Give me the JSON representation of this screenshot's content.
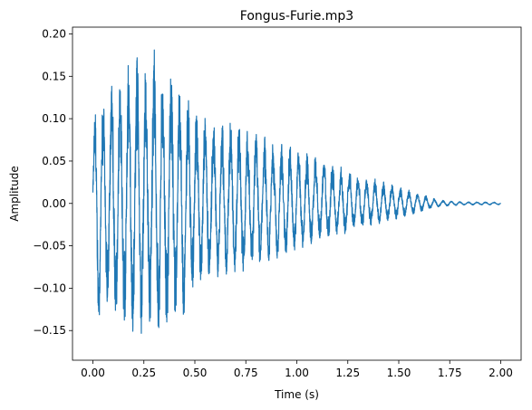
{
  "chart_data": {
    "type": "line",
    "title": "Fongus-Furie.mp3",
    "xlabel": "Time (s)",
    "ylabel": "Amplitude",
    "xlim": [
      -0.1,
      2.1
    ],
    "ylim": [
      -0.185,
      0.208
    ],
    "xticks": [
      0.0,
      0.25,
      0.5,
      0.75,
      1.0,
      1.25,
      1.5,
      1.75,
      2.0
    ],
    "xtick_labels": [
      "0.00",
      "0.25",
      "0.50",
      "0.75",
      "1.00",
      "1.25",
      "1.50",
      "1.75",
      "2.00"
    ],
    "yticks": [
      -0.15,
      -0.1,
      -0.05,
      0.0,
      0.05,
      0.1,
      0.15,
      0.2
    ],
    "ytick_labels": [
      "−0.15",
      "−0.10",
      "−0.05",
      "0.00",
      "0.05",
      "0.10",
      "0.15",
      "0.20"
    ],
    "grid": false,
    "legend": false,
    "series": [
      {
        "color": "#1f77b4",
        "x_start": 0.0,
        "x_end": 2.0,
        "envelope": {
          "x": [
            0.0,
            0.02,
            0.05,
            0.1,
            0.15,
            0.2,
            0.25,
            0.3,
            0.35,
            0.4,
            0.45,
            0.5,
            0.6,
            0.7,
            0.8,
            0.9,
            1.0,
            1.1,
            1.2,
            1.3,
            1.4,
            1.5,
            1.6,
            1.65,
            1.7,
            1.8,
            2.0
          ],
          "y_max": [
            0.05,
            0.18,
            0.12,
            0.15,
            0.14,
            0.19,
            0.16,
            0.19,
            0.14,
            0.16,
            0.15,
            0.11,
            0.1,
            0.095,
            0.085,
            0.075,
            0.065,
            0.055,
            0.045,
            0.035,
            0.028,
            0.02,
            0.012,
            0.008,
            0.004,
            0.002,
            0.0015
          ],
          "y_min": [
            -0.11,
            -0.16,
            -0.1,
            -0.14,
            -0.15,
            -0.16,
            -0.165,
            -0.15,
            -0.165,
            -0.13,
            -0.15,
            -0.1,
            -0.09,
            -0.085,
            -0.075,
            -0.065,
            -0.055,
            -0.045,
            -0.04,
            -0.03,
            -0.025,
            -0.018,
            -0.01,
            -0.007,
            -0.004,
            -0.002,
            -0.0015
          ]
        }
      }
    ]
  }
}
